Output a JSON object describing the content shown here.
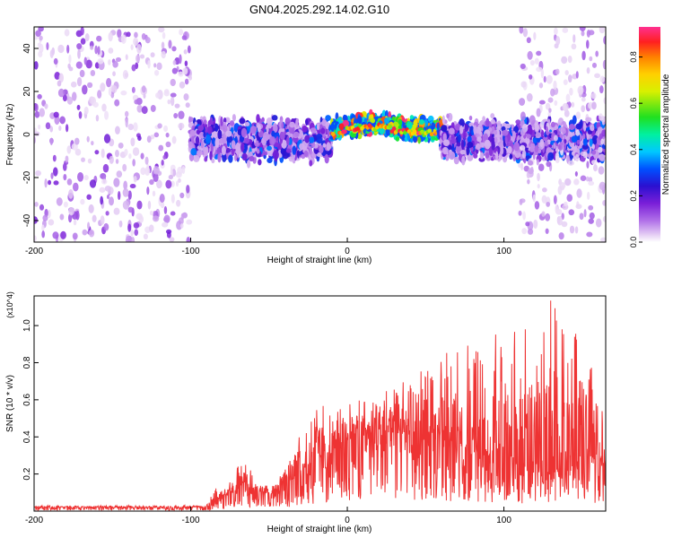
{
  "figure_title": "GN04.2025.292.14.02.G10",
  "chart_data": [
    {
      "type": "heatmap",
      "name": "spectrogram",
      "xlabel": "Height of straight line (km)",
      "ylabel": "Frequency (Hz)",
      "xlim": [
        -200,
        165
      ],
      "ylim": [
        -50,
        50
      ],
      "xticks": [
        -200,
        -100,
        0,
        100
      ],
      "yticks": [
        -40,
        -20,
        0,
        20,
        40
      ],
      "colorbar": {
        "label": "Normalized spectral amplitude",
        "range": [
          0,
          0.93
        ],
        "ticks": [
          0.0,
          0.2,
          0.4,
          0.6,
          0.8
        ],
        "colormap": "rainbow (magenta-violet-blue-cyan-green-yellow-orange-red)"
      },
      "regions": [
        {
          "x": [
            -200,
            -100
          ],
          "frequency_spread": [
            -50,
            50
          ],
          "amplitude": [
            0.02,
            0.18
          ],
          "description": "broadband noise"
        },
        {
          "x": [
            -100,
            -10
          ],
          "frequency_spread": [
            -15,
            10
          ],
          "amplitude": [
            0.05,
            0.35
          ]
        },
        {
          "x": [
            -10,
            60
          ],
          "frequency_spread": [
            -5,
            8
          ],
          "amplitude": [
            0.3,
            0.93
          ],
          "ridge_center_hz": 2
        },
        {
          "x": [
            60,
            165
          ],
          "frequency_spread": [
            -15,
            10
          ],
          "amplitude": [
            0.05,
            0.35
          ]
        },
        {
          "x": [
            110,
            165
          ],
          "frequency_spread": [
            -50,
            50
          ],
          "amplitude": [
            0.02,
            0.12
          ]
        }
      ]
    },
    {
      "type": "line",
      "name": "snr",
      "xlabel": "Height of straight line (km)",
      "ylabel": "SNR (10 * v/v)",
      "y_multiplier": "(x10^4)",
      "xlim": [
        -200,
        165
      ],
      "ylim": [
        0,
        1.16
      ],
      "xticks": [
        -200,
        -100,
        0,
        100
      ],
      "yticks": [
        0.2,
        0.4,
        0.6,
        0.8,
        1.0
      ],
      "color": "#ee3333",
      "series": [
        {
          "x": [
            -200,
            -150,
            -100,
            -90,
            -85,
            -75,
            -70,
            -65,
            -60,
            -55,
            -50,
            -45,
            -40,
            -35,
            -30,
            -25,
            -20,
            -15,
            -10,
            -5,
            0,
            10,
            20,
            30,
            40,
            50,
            60,
            70,
            80,
            90,
            100,
            110,
            120,
            130,
            140,
            150,
            160,
            165
          ],
          "y_mean": [
            0.02,
            0.02,
            0.02,
            0.02,
            0.06,
            0.08,
            0.11,
            0.15,
            0.12,
            0.1,
            0.09,
            0.1,
            0.13,
            0.16,
            0.2,
            0.22,
            0.26,
            0.28,
            0.3,
            0.33,
            0.37,
            0.4,
            0.41,
            0.42,
            0.4,
            0.38,
            0.36,
            0.32,
            0.3,
            0.28,
            0.27,
            0.26,
            0.26,
            0.26,
            0.26,
            0.26,
            0.26,
            0.26
          ],
          "y_peak": [
            0.03,
            0.03,
            0.03,
            0.03,
            0.12,
            0.16,
            0.24,
            0.27,
            0.2,
            0.15,
            0.14,
            0.18,
            0.22,
            0.3,
            0.42,
            0.44,
            0.56,
            0.58,
            0.5,
            0.55,
            0.62,
            0.6,
            0.6,
            0.7,
            0.75,
            0.77,
            0.87,
            0.95,
            0.9,
            0.95,
            0.98,
            1.02,
            1.0,
            1.16,
            0.95,
            1.03,
            0.9,
            0.88
          ]
        }
      ]
    }
  ]
}
